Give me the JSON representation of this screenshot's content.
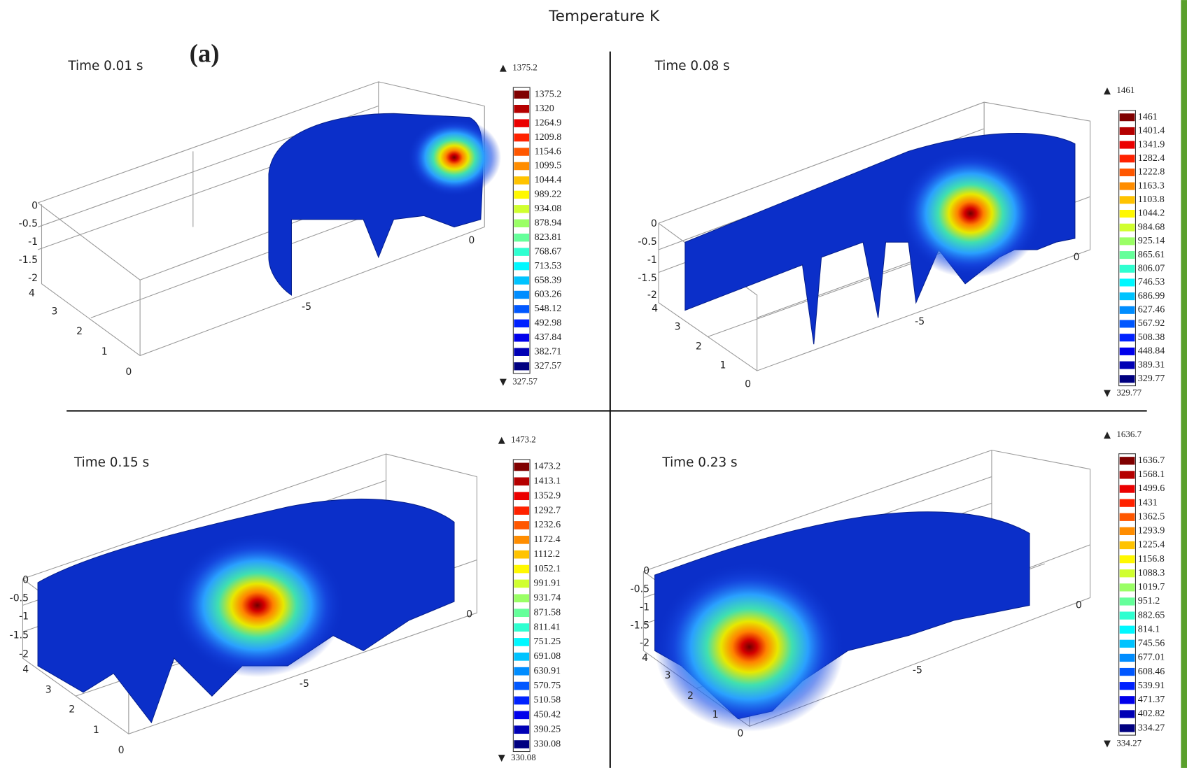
{
  "title": "Temperature K",
  "label": "(a)",
  "panels": [
    {
      "time": "Time 0.01 s",
      "max": 1375.2,
      "min": 327.57,
      "levels": [
        1375.2,
        1320,
        1264.9,
        1209.8,
        1154.6,
        1099.5,
        1044.4,
        989.22,
        934.08,
        878.94,
        823.81,
        768.67,
        713.53,
        658.39,
        603.26,
        548.12,
        492.98,
        437.84,
        382.71,
        327.57
      ],
      "axes": {
        "z": [
          0,
          -0.5,
          -1,
          -1.5,
          -2
        ],
        "y": [
          4,
          3,
          2,
          1,
          0
        ],
        "x": [
          -5,
          0
        ]
      }
    },
    {
      "time": "Time 0.08 s",
      "max": 1461,
      "min": 329.77,
      "levels": [
        1461,
        1401.4,
        1341.9,
        1282.4,
        1222.8,
        1163.3,
        1103.8,
        1044.2,
        984.68,
        925.14,
        865.61,
        806.07,
        746.53,
        686.99,
        627.46,
        567.92,
        508.38,
        448.84,
        389.31,
        329.77
      ],
      "axes": {
        "z": [
          0,
          -0.5,
          -1,
          -1.5,
          -2
        ],
        "y": [
          4,
          3,
          2,
          1,
          0
        ],
        "x": [
          -5,
          0
        ]
      }
    },
    {
      "time": "Time 0.15 s",
      "max": 1473.2,
      "min": 330.08,
      "levels": [
        1473.2,
        1413.1,
        1352.9,
        1292.7,
        1232.6,
        1172.4,
        1112.2,
        1052.1,
        991.91,
        931.74,
        871.58,
        811.41,
        751.25,
        691.08,
        630.91,
        570.75,
        510.58,
        450.42,
        390.25,
        330.08
      ],
      "axes": {
        "z": [
          0,
          -0.5,
          -1,
          -1.5,
          -2
        ],
        "y": [
          4,
          3,
          2,
          1,
          0
        ],
        "x": [
          -5,
          0
        ]
      }
    },
    {
      "time": "Time 0.23 s",
      "max": 1636.7,
      "min": 334.27,
      "levels": [
        1636.7,
        1568.1,
        1499.6,
        1431,
        1362.5,
        1293.9,
        1225.4,
        1156.8,
        1088.3,
        1019.7,
        951.2,
        882.65,
        814.1,
        745.56,
        677.01,
        608.46,
        539.91,
        471.37,
        402.82,
        334.27
      ],
      "axes": {
        "z": [
          0,
          -0.5,
          -1,
          -1.5,
          -2
        ],
        "y": [
          4,
          3,
          2,
          1,
          0
        ],
        "x": [
          -5,
          0
        ]
      }
    }
  ]
}
